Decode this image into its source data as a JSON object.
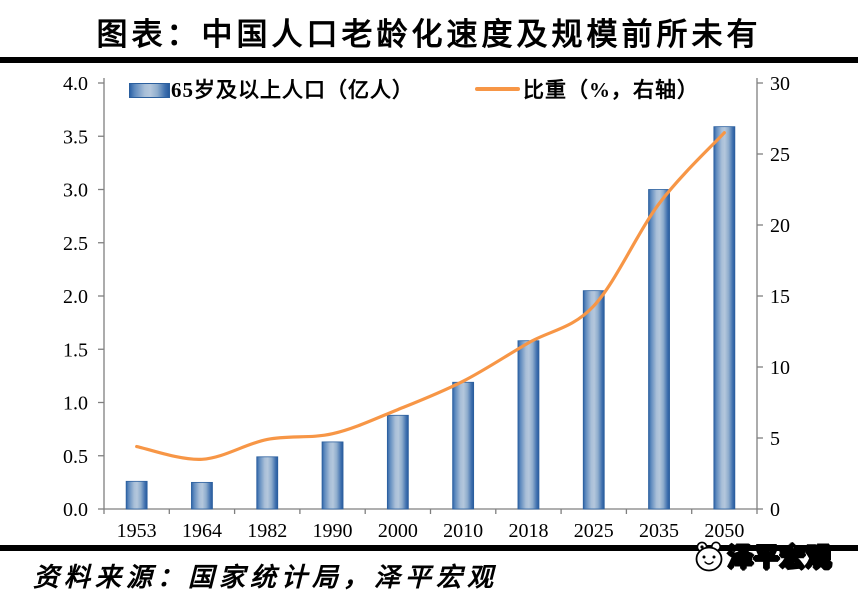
{
  "title": "图表：中国人口老龄化速度及规模前所未有",
  "source": "资料来源：国家统计局，泽平宏观",
  "watermark": "泽平宏观",
  "legend": {
    "bars": "65岁及以上人口（亿人）",
    "line": "比重（%，右轴）"
  },
  "chart_data": {
    "type": "bar",
    "subtype": "bar+line combo, dual axis",
    "title": "图表：中国人口老龄化速度及规模前所未有",
    "categories": [
      "1953",
      "1964",
      "1982",
      "1990",
      "2000",
      "2010",
      "2018",
      "2025",
      "2035",
      "2050"
    ],
    "series": [
      {
        "name": "65岁及以上人口（亿人）",
        "type": "bar",
        "axis": "left",
        "values": [
          0.26,
          0.25,
          0.49,
          0.63,
          0.88,
          1.19,
          1.58,
          2.05,
          3.0,
          3.59
        ]
      },
      {
        "name": "比重（%，右轴）",
        "type": "line",
        "axis": "right",
        "values": [
          4.4,
          3.5,
          4.9,
          5.3,
          7.0,
          9.0,
          11.7,
          14.3,
          21.5,
          26.5
        ]
      }
    ],
    "left_axis": {
      "min": 0,
      "max": 4,
      "step": 0.5,
      "ticks": [
        "0.0",
        "0.5",
        "1.0",
        "1.5",
        "2.0",
        "2.5",
        "3.0",
        "3.5",
        "4.0"
      ]
    },
    "right_axis": {
      "min": 0,
      "max": 30,
      "step": 5,
      "ticks": [
        "0",
        "5",
        "10",
        "15",
        "20",
        "25",
        "30"
      ]
    },
    "grid": false,
    "legend_position": "top-inside",
    "colors": {
      "bar_dark": "#2e63a6",
      "bar_light": "#b4c7dc",
      "bar_border": "#2b5f9e",
      "line": "#f79646",
      "axis": "#7f7f7f",
      "text": "#000000",
      "rule": "#000000"
    }
  }
}
